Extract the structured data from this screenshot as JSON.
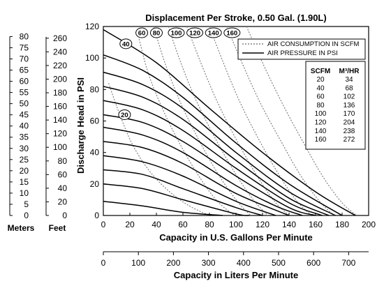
{
  "chart_data": {
    "type": "line",
    "title": "Displacement Per Stroke, 0.50 Gal. (1.90L)",
    "xlabel": "Capacity in U.S. Gallons Per Minute",
    "ylabel": "Discharge Head in PSI",
    "xlim": [
      0,
      200
    ],
    "ylim": [
      0,
      120
    ],
    "xticks": [
      0,
      20,
      40,
      60,
      80,
      100,
      120,
      140,
      160,
      180,
      200
    ],
    "yticks": [
      0,
      20,
      40,
      60,
      80,
      100,
      120
    ],
    "x2label": "Capacity in Liters Per Minute",
    "x2ticks": [
      0,
      100,
      200,
      300,
      400,
      500,
      600,
      700
    ],
    "meters_label": "Meters",
    "meters_ticks": [
      0,
      5,
      10,
      15,
      20,
      25,
      30,
      35,
      40,
      45,
      50,
      55,
      60,
      65,
      70,
      75,
      80
    ],
    "feet_label": "Feet",
    "feet_ticks": [
      0,
      20,
      40,
      60,
      80,
      100,
      120,
      140,
      160,
      180,
      200,
      220,
      240,
      260
    ],
    "legend": {
      "placement": "top-right",
      "entries": [
        {
          "label": "AIR CONSUMPTION IN SCFM",
          "style": "dotted"
        },
        {
          "label": "AIR PRESSURE IN PSI",
          "style": "solid"
        }
      ]
    },
    "conversion_table": {
      "headers": [
        "SCFM",
        "M³/HR"
      ],
      "rows": [
        [
          "20",
          "34"
        ],
        [
          "40",
          "68"
        ],
        [
          "60",
          "102"
        ],
        [
          "80",
          "136"
        ],
        [
          "100",
          "170"
        ],
        [
          "120",
          "204"
        ],
        [
          "140",
          "238"
        ],
        [
          "160",
          "272"
        ]
      ]
    },
    "pressure_series": [
      {
        "x": [
          0,
          40,
          80,
          120,
          160,
          190
        ],
        "y": [
          118,
          97,
          68,
          40,
          15,
          0
        ]
      },
      {
        "x": [
          0,
          30,
          60,
          100,
          140,
          180
        ],
        "y": [
          102,
          92,
          75,
          46,
          20,
          0
        ]
      },
      {
        "x": [
          0,
          30,
          60,
          100,
          140,
          175
        ],
        "y": [
          91,
          83,
          68,
          40,
          15,
          0
        ]
      },
      {
        "x": [
          0,
          30,
          60,
          100,
          140,
          170
        ],
        "y": [
          82,
          75,
          61,
          35,
          11,
          0
        ]
      },
      {
        "x": [
          0,
          30,
          60,
          100,
          140,
          165
        ],
        "y": [
          73,
          67,
          54,
          30,
          8,
          0
        ]
      },
      {
        "x": [
          0,
          30,
          60,
          100,
          140,
          160
        ],
        "y": [
          64,
          59,
          47,
          25,
          5,
          0
        ]
      },
      {
        "x": [
          0,
          30,
          60,
          100,
          130,
          150
        ],
        "y": [
          56,
          51,
          40,
          19,
          6,
          0
        ]
      },
      {
        "x": [
          0,
          30,
          60,
          100,
          140
        ],
        "y": [
          47,
          43,
          33,
          14,
          0
        ]
      },
      {
        "x": [
          0,
          30,
          60,
          100,
          130
        ],
        "y": [
          38,
          34,
          25,
          9,
          0
        ]
      },
      {
        "x": [
          0,
          30,
          60,
          100,
          120
        ],
        "y": [
          29,
          26,
          17,
          5,
          0
        ]
      },
      {
        "x": [
          0,
          30,
          60,
          100,
          110
        ],
        "y": [
          20,
          17,
          10,
          1,
          0
        ]
      },
      {
        "x": [
          0,
          30,
          60,
          90
        ],
        "y": [
          9,
          6,
          2,
          0
        ]
      }
    ],
    "air_series": [
      {
        "label": "20",
        "x": [
          4,
          12,
          22,
          35,
          50,
          65,
          80
        ],
        "y": [
          84,
          65,
          45,
          28,
          15,
          6,
          0
        ]
      },
      {
        "label": "40",
        "x": [
          27,
          34,
          45,
          58,
          72,
          86,
          99
        ],
        "y": [
          112,
          90,
          67,
          45,
          25,
          9,
          0
        ]
      },
      {
        "label": "60",
        "x": [
          38,
          46,
          58,
          72,
          86,
          100,
          111
        ],
        "y": [
          120,
          98,
          72,
          48,
          27,
          10,
          0
        ]
      },
      {
        "label": "80",
        "x": [
          49,
          58,
          70,
          85,
          100,
          113,
          124
        ],
        "y": [
          120,
          98,
          73,
          48,
          26,
          10,
          0
        ]
      },
      {
        "label": "100",
        "x": [
          63,
          73,
          86,
          101,
          116,
          129,
          140
        ],
        "y": [
          120,
          98,
          72,
          47,
          25,
          9,
          0
        ]
      },
      {
        "label": "120",
        "x": [
          80,
          90,
          103,
          118,
          133,
          146,
          157
        ],
        "y": [
          120,
          98,
          72,
          47,
          25,
          9,
          0
        ]
      },
      {
        "label": "140",
        "x": [
          93,
          104,
          118,
          134,
          149,
          163,
          174
        ],
        "y": [
          120,
          98,
          72,
          47,
          25,
          9,
          0
        ]
      },
      {
        "label": "160",
        "x": [
          108,
          120,
          135,
          151,
          166,
          180,
          191
        ],
        "y": [
          120,
          97,
          71,
          46,
          24,
          8,
          0
        ]
      }
    ],
    "grid": false
  }
}
